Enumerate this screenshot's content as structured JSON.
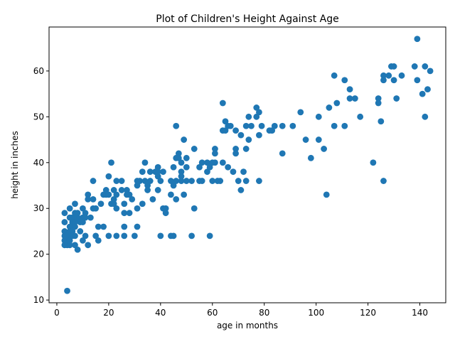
{
  "chart_data": {
    "type": "scatter",
    "title": "Plot of Children's Height Against Age",
    "xlabel": "age in months",
    "ylabel": "height in inches",
    "xlim": [
      -3,
      150
    ],
    "ylim": [
      9.4,
      69.6
    ],
    "xticks": [
      0,
      20,
      40,
      60,
      80,
      100,
      120,
      140
    ],
    "yticks": [
      10,
      20,
      30,
      40,
      50,
      60
    ],
    "grid": false,
    "marker_color": "#1f77b4",
    "series": [
      {
        "points": [
          [
            3,
            29
          ],
          [
            3,
            27
          ],
          [
            3,
            25
          ],
          [
            3,
            24
          ],
          [
            3,
            23
          ],
          [
            3,
            22
          ],
          [
            4,
            24
          ],
          [
            4,
            22
          ],
          [
            4,
            12
          ],
          [
            5,
            30
          ],
          [
            5,
            28
          ],
          [
            5,
            26
          ],
          [
            5,
            25
          ],
          [
            5,
            23
          ],
          [
            5,
            22
          ],
          [
            6,
            28
          ],
          [
            6,
            27
          ],
          [
            6,
            25
          ],
          [
            6,
            24
          ],
          [
            7,
            31
          ],
          [
            7,
            29
          ],
          [
            7,
            27
          ],
          [
            7,
            26
          ],
          [
            7,
            24
          ],
          [
            7,
            22
          ],
          [
            8,
            29
          ],
          [
            8,
            28
          ],
          [
            8,
            21
          ],
          [
            9,
            27
          ],
          [
            9,
            25
          ],
          [
            10,
            30
          ],
          [
            10,
            28
          ],
          [
            10,
            27
          ],
          [
            10,
            23
          ],
          [
            11,
            29
          ],
          [
            11,
            28
          ],
          [
            11,
            24
          ],
          [
            12,
            33
          ],
          [
            12,
            32
          ],
          [
            12,
            22
          ],
          [
            13,
            28
          ],
          [
            14,
            36
          ],
          [
            14,
            32
          ],
          [
            14,
            30
          ],
          [
            15,
            30
          ],
          [
            15,
            24
          ],
          [
            16,
            26
          ],
          [
            16,
            23
          ],
          [
            17,
            31
          ],
          [
            18,
            33
          ],
          [
            18,
            26
          ],
          [
            19,
            34
          ],
          [
            19,
            33
          ],
          [
            20,
            37
          ],
          [
            20,
            33
          ],
          [
            20,
            24
          ],
          [
            21,
            40
          ],
          [
            21,
            31
          ],
          [
            22,
            34
          ],
          [
            22,
            32
          ],
          [
            22,
            31
          ],
          [
            23,
            36
          ],
          [
            23,
            33
          ],
          [
            23,
            30
          ],
          [
            23,
            24
          ],
          [
            25,
            36
          ],
          [
            25,
            34
          ],
          [
            26,
            31
          ],
          [
            26,
            29
          ],
          [
            26,
            26
          ],
          [
            26,
            24
          ],
          [
            27,
            34
          ],
          [
            27,
            33
          ],
          [
            28,
            33
          ],
          [
            28,
            29
          ],
          [
            29,
            32
          ],
          [
            30,
            24
          ],
          [
            31,
            36
          ],
          [
            31,
            35
          ],
          [
            31,
            30
          ],
          [
            31,
            26
          ],
          [
            32,
            36
          ],
          [
            33,
            38
          ],
          [
            33,
            31
          ],
          [
            34,
            40
          ],
          [
            34,
            36
          ],
          [
            35,
            35
          ],
          [
            35,
            34
          ],
          [
            36,
            38
          ],
          [
            36,
            36
          ],
          [
            37,
            32
          ],
          [
            38,
            38
          ],
          [
            39,
            39
          ],
          [
            39,
            38
          ],
          [
            39,
            37
          ],
          [
            39,
            34
          ],
          [
            40,
            36
          ],
          [
            40,
            24
          ],
          [
            41,
            38
          ],
          [
            41,
            30
          ],
          [
            42,
            30
          ],
          [
            42,
            29
          ],
          [
            44,
            36
          ],
          [
            44,
            33
          ],
          [
            44,
            24
          ],
          [
            45,
            39
          ],
          [
            45,
            35
          ],
          [
            45,
            24
          ],
          [
            46,
            48
          ],
          [
            46,
            41
          ],
          [
            46,
            36
          ],
          [
            46,
            32
          ],
          [
            47,
            42
          ],
          [
            47,
            41
          ],
          [
            48,
            40
          ],
          [
            48,
            38
          ],
          [
            48,
            36
          ],
          [
            48,
            37
          ],
          [
            49,
            45
          ],
          [
            49,
            33
          ],
          [
            50,
            41
          ],
          [
            50,
            36
          ],
          [
            50,
            39
          ],
          [
            52,
            36
          ],
          [
            52,
            24
          ],
          [
            53,
            43
          ],
          [
            53,
            30
          ],
          [
            55,
            39
          ],
          [
            55,
            36
          ],
          [
            56,
            40
          ],
          [
            56,
            36
          ],
          [
            58,
            40
          ],
          [
            58,
            38
          ],
          [
            59,
            39
          ],
          [
            59,
            24
          ],
          [
            60,
            40
          ],
          [
            60,
            36
          ],
          [
            61,
            43
          ],
          [
            61,
            42
          ],
          [
            61,
            40
          ],
          [
            62,
            36
          ],
          [
            63,
            36
          ],
          [
            64,
            53
          ],
          [
            64,
            47
          ],
          [
            64,
            40
          ],
          [
            65,
            49
          ],
          [
            65,
            47
          ],
          [
            66,
            48
          ],
          [
            66,
            39
          ],
          [
            67,
            48
          ],
          [
            68,
            38
          ],
          [
            69,
            47
          ],
          [
            69,
            43
          ],
          [
            69,
            42
          ],
          [
            70,
            36
          ],
          [
            71,
            46
          ],
          [
            71,
            34
          ],
          [
            72,
            38
          ],
          [
            73,
            48
          ],
          [
            73,
            43
          ],
          [
            73,
            36
          ],
          [
            74,
            50
          ],
          [
            74,
            45
          ],
          [
            75,
            48
          ],
          [
            77,
            52
          ],
          [
            77,
            50
          ],
          [
            78,
            51
          ],
          [
            78,
            46
          ],
          [
            78,
            36
          ],
          [
            79,
            48
          ],
          [
            82,
            47
          ],
          [
            83,
            47
          ],
          [
            84,
            48
          ],
          [
            87,
            48
          ],
          [
            87,
            42
          ],
          [
            91,
            48
          ],
          [
            94,
            51
          ],
          [
            96,
            45
          ],
          [
            98,
            41
          ],
          [
            101,
            50
          ],
          [
            101,
            45
          ],
          [
            103,
            43
          ],
          [
            104,
            33
          ],
          [
            105,
            52
          ],
          [
            107,
            59
          ],
          [
            107,
            48
          ],
          [
            108,
            53
          ],
          [
            111,
            58
          ],
          [
            111,
            48
          ],
          [
            113,
            56
          ],
          [
            113,
            54
          ],
          [
            115,
            54
          ],
          [
            117,
            50
          ],
          [
            122,
            40
          ],
          [
            124,
            54
          ],
          [
            124,
            53
          ],
          [
            125,
            49
          ],
          [
            126,
            59
          ],
          [
            126,
            58
          ],
          [
            126,
            36
          ],
          [
            128,
            59
          ],
          [
            129,
            61
          ],
          [
            130,
            61
          ],
          [
            130,
            58
          ],
          [
            131,
            54
          ],
          [
            133,
            59
          ],
          [
            138,
            61
          ],
          [
            139,
            67
          ],
          [
            139,
            58
          ],
          [
            141,
            55
          ],
          [
            142,
            61
          ],
          [
            142,
            50
          ],
          [
            143,
            56
          ],
          [
            144,
            60
          ]
        ]
      }
    ]
  }
}
